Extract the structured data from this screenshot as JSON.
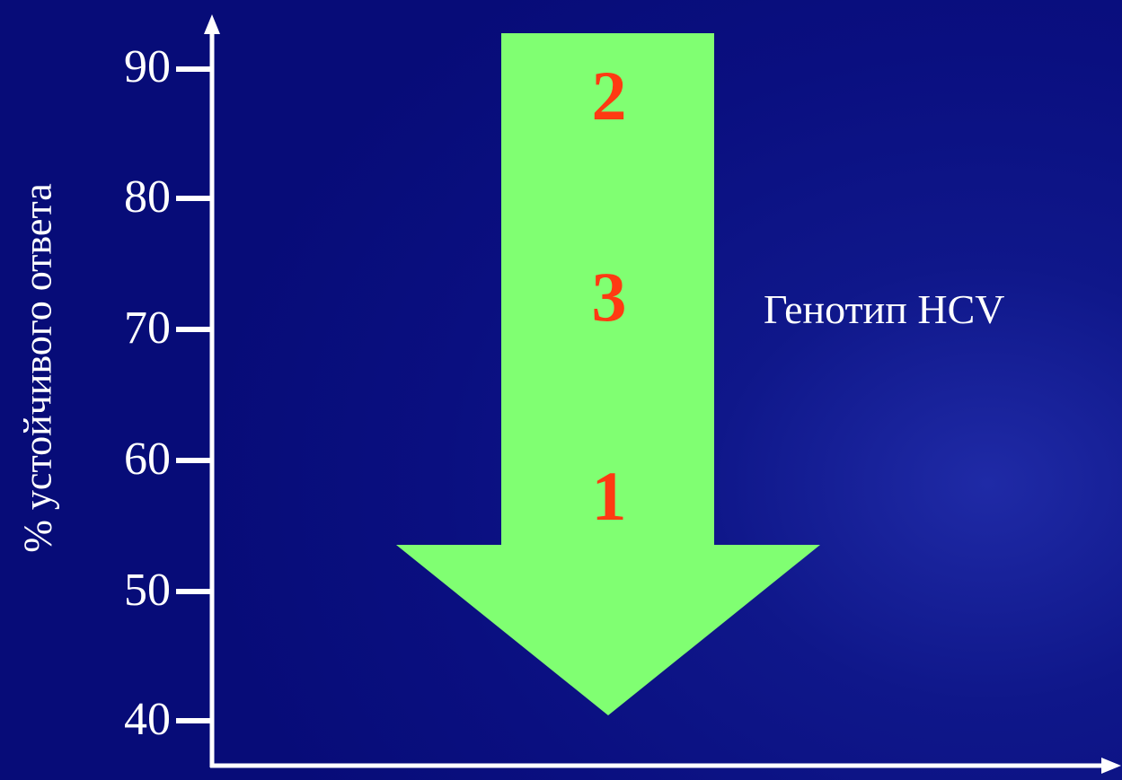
{
  "y_axis": {
    "label": "% устойчивого ответа",
    "ticks": [
      "90",
      "80",
      "70",
      "60",
      "50",
      "40"
    ]
  },
  "arrow": {
    "fill_color": "#80ff72",
    "number_color": "#ff3a12",
    "items": [
      "2",
      "3",
      "1"
    ]
  },
  "genotype_label": "Генотип HCV",
  "colors": {
    "background": "#0a0f80",
    "axis": "#ffffff"
  }
}
